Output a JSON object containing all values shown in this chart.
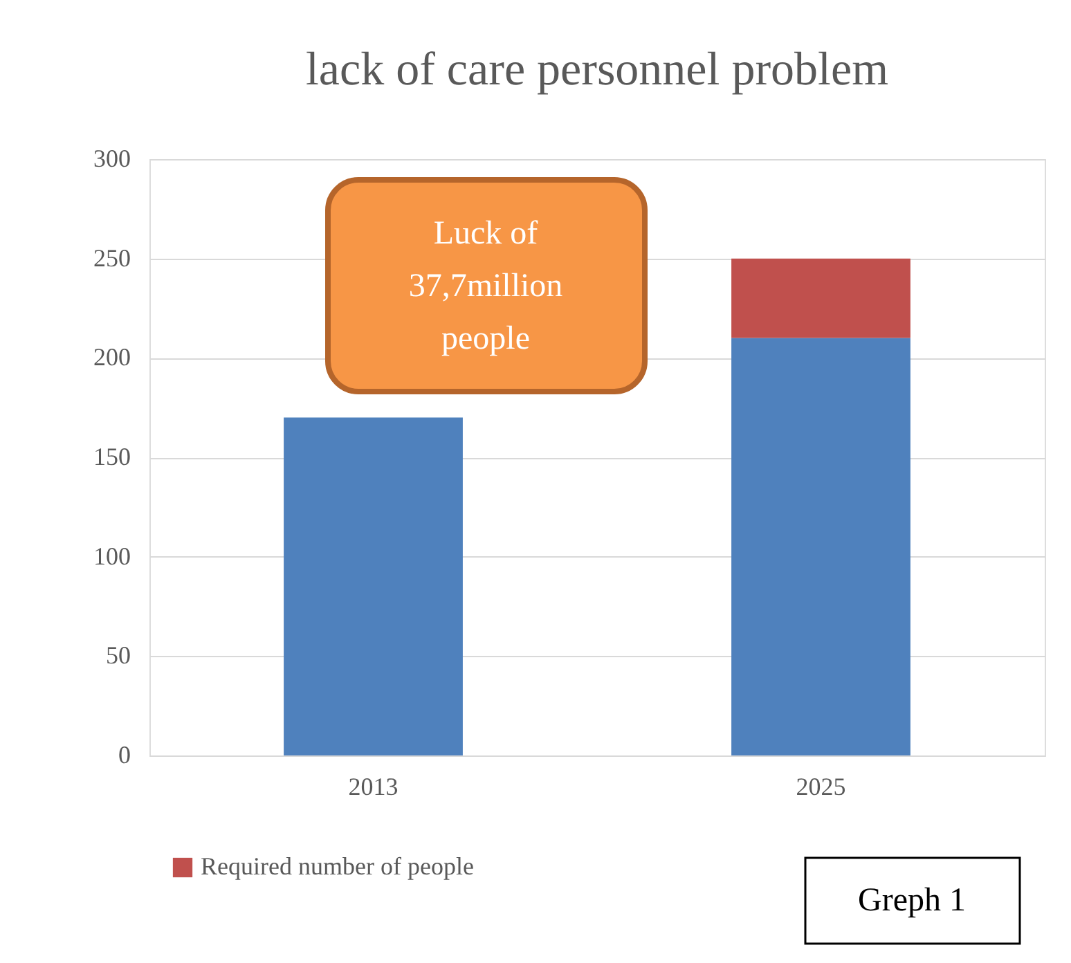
{
  "chart_data": {
    "type": "bar",
    "title": "lack of care personnel problem",
    "categories": [
      "2013",
      "2025"
    ],
    "stacked": true,
    "series": [
      {
        "color": "#4f81bd",
        "values": [
          170,
          210
        ]
      },
      {
        "name": "Required number of people",
        "color": "#c0504d",
        "values": [
          null,
          40
        ]
      }
    ],
    "ylim": [
      0,
      300
    ],
    "yticks": [
      0,
      50,
      100,
      150,
      200,
      250,
      300
    ],
    "grid": "y",
    "legend": "bottom left",
    "annotations": [
      "Luck of 37,7million people",
      "Greph 1"
    ]
  }
}
